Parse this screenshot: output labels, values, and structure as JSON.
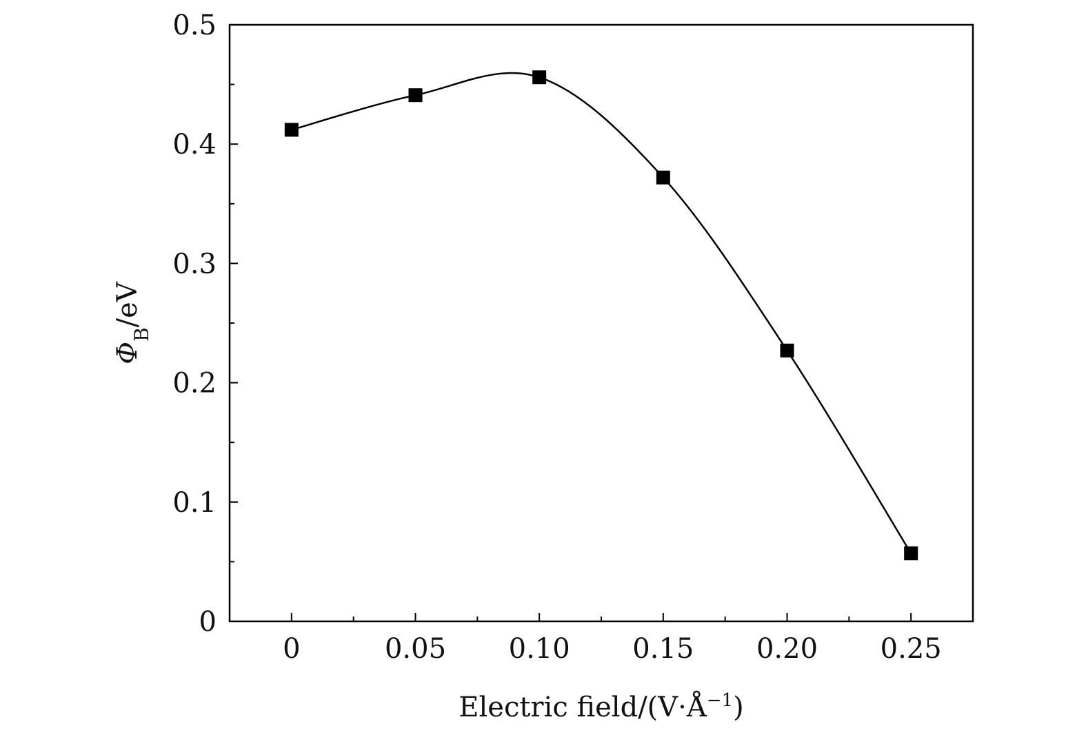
{
  "chart_data": {
    "type": "line",
    "title": "",
    "xlabel": "Electric field/(V·Å",
    "xlabel_sup": "−1",
    "xlabel_close": ")",
    "ylabel_symbol": "Φ",
    "ylabel_sub": "B",
    "ylabel_rest": "/eV",
    "xlim": [
      -0.025,
      0.275
    ],
    "ylim": [
      0,
      0.5
    ],
    "x_ticks": [
      0,
      0.05,
      0.1,
      0.15,
      0.2,
      0.25
    ],
    "x_tick_labels": [
      "0",
      "0.05",
      "0.10",
      "0.15",
      "0.20",
      "0.25"
    ],
    "y_ticks": [
      0,
      0.1,
      0.2,
      0.3,
      0.4,
      0.5
    ],
    "y_tick_labels": [
      "0",
      "0.1",
      "0.2",
      "0.3",
      "0.4",
      "0.5"
    ],
    "grid": false,
    "legend": "none",
    "marker": "square",
    "series": [
      {
        "x": [
          0,
          0.05,
          0.1,
          0.15,
          0.2,
          0.25
        ],
        "values": [
          0.412,
          0.441,
          0.456,
          0.372,
          0.227,
          0.057
        ]
      }
    ],
    "colors": {
      "line": "#000000",
      "marker": "#000000",
      "axis": "#000000"
    }
  }
}
